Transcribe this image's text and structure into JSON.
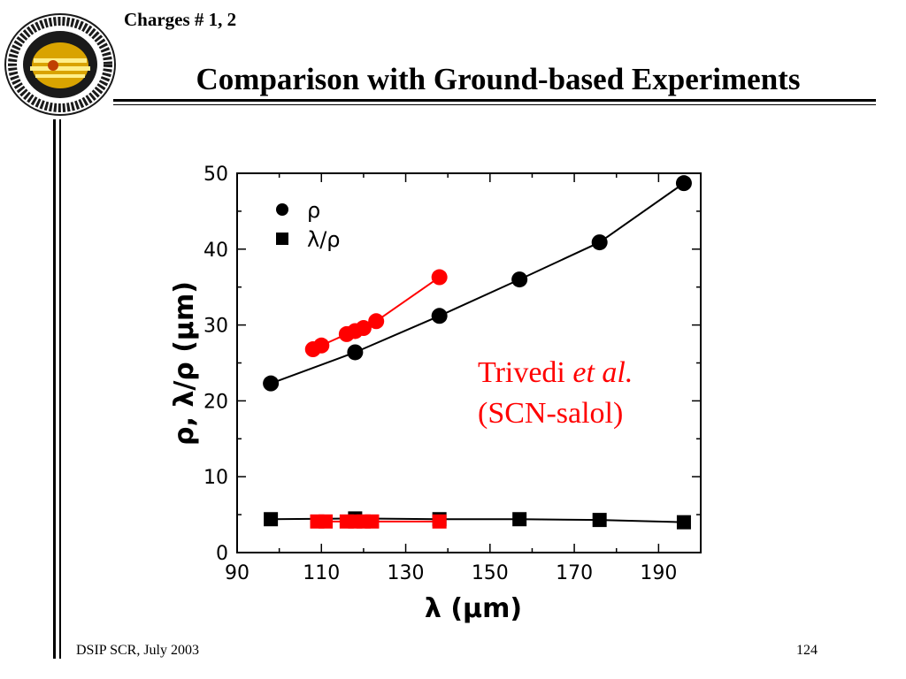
{
  "slide": {
    "subtitle": "Charges # 1, 2",
    "title": "Comparison with Ground-based Experiments",
    "footer_left": "DSIP SCR, July 2003",
    "page_number": "124"
  },
  "colors": {
    "black_series": "#000000",
    "red_series": "#ff0000",
    "logo_ring": "#1a1a1a",
    "logo_inner": "#d9a300"
  },
  "chart_data": {
    "type": "line",
    "xlabel": "λ (μm)",
    "ylabel": "ρ, λ/ρ (μm)",
    "xlim": [
      90,
      200
    ],
    "ylim": [
      0,
      50
    ],
    "xticks": [
      90,
      110,
      130,
      150,
      170,
      190
    ],
    "yticks": [
      0,
      10,
      20,
      30,
      40,
      50
    ],
    "legend": {
      "placement": "top-left",
      "entries": [
        {
          "marker": "circle",
          "label": "ρ"
        },
        {
          "marker": "square",
          "label": "λ/ρ"
        }
      ]
    },
    "annotation": {
      "line1_roman": "Trivedi ",
      "line1_italic": "et al.",
      "line2": "(SCN-salol)",
      "color": "#ff0000"
    },
    "series": [
      {
        "group": "present",
        "quantity": "ρ",
        "marker": "circle",
        "color": "#000000",
        "x": [
          98,
          118,
          138,
          157,
          176,
          196
        ],
        "y": [
          22.3,
          26.4,
          31.2,
          36.0,
          40.9,
          48.7
        ]
      },
      {
        "group": "present",
        "quantity": "λ/ρ",
        "marker": "square",
        "color": "#000000",
        "x": [
          98,
          118,
          138,
          157,
          176,
          196
        ],
        "y": [
          4.4,
          4.5,
          4.4,
          4.4,
          4.3,
          4.0
        ]
      },
      {
        "group": "Trivedi et al. (SCN-salol)",
        "quantity": "ρ",
        "marker": "circle",
        "color": "#ff0000",
        "x": [
          108,
          110,
          116,
          118,
          120,
          123,
          138
        ],
        "y": [
          26.8,
          27.3,
          28.8,
          29.2,
          29.6,
          30.5,
          36.3
        ]
      },
      {
        "group": "Trivedi et al. (SCN-salol)",
        "quantity": "λ/ρ",
        "marker": "square",
        "color": "#ff0000",
        "x": [
          109,
          111,
          116,
          118,
          120,
          122,
          138
        ],
        "y": [
          4.1,
          4.1,
          4.1,
          4.1,
          4.1,
          4.1,
          4.1
        ]
      }
    ]
  }
}
